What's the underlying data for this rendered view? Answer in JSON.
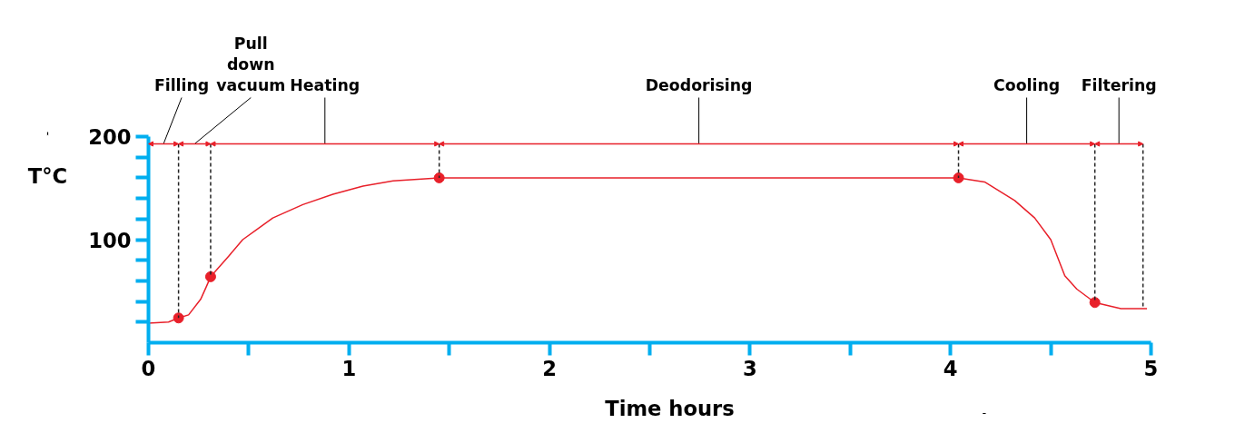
{
  "chart_data": {
    "type": "line",
    "xlabel": "Time hours",
    "ylabel": "T°C",
    "xlim": [
      0,
      5
    ],
    "ylim": [
      0,
      200
    ],
    "xticks": [
      0,
      {
        "value": 0.5,
        "label": null
      },
      1,
      {
        "value": 1.5,
        "label": null
      },
      2,
      {
        "value": 2.5,
        "label": null
      },
      3,
      {
        "value": 3.5,
        "label": null
      },
      4,
      {
        "value": 4.5,
        "label": null
      },
      5
    ],
    "yticks": [
      {
        "value": 20,
        "label": null
      },
      {
        "value": 40,
        "label": null
      },
      {
        "value": 60,
        "label": null
      },
      {
        "value": 80,
        "label": null
      },
      100,
      {
        "value": 120,
        "label": null
      },
      {
        "value": 140,
        "label": null
      },
      {
        "value": 160,
        "label": null
      },
      {
        "value": 180,
        "label": null
      },
      200
    ],
    "grid": false,
    "marker": "none",
    "line_style": "solid",
    "series": [
      {
        "color": "#e8202a",
        "x": [
          0,
          0.1,
          0.15,
          0.2,
          0.26,
          0.29,
          0.31,
          0.4,
          0.47,
          0.62,
          0.77,
          0.92,
          1.07,
          1.22,
          1.45,
          4.04,
          4.17,
          4.32,
          4.42,
          4.5,
          4.57,
          4.63,
          4.72,
          4.85,
          4.98
        ],
        "values": [
          19,
          20,
          24,
          27,
          42,
          55,
          64,
          84,
          100,
          121,
          134,
          144,
          152,
          157,
          160,
          160,
          156,
          138,
          121,
          100,
          65,
          52,
          39,
          33,
          33
        ]
      },
      {
        "type": "scatter",
        "color": "#e8202a",
        "marker": "circle",
        "x": [
          0.15,
          0.31,
          1.45,
          4.04,
          4.72
        ],
        "values": [
          24,
          64,
          160,
          160,
          39
        ]
      }
    ],
    "ref_lines": [
      {
        "axis": "x",
        "value": 0.15,
        "color": "#222222",
        "line_style": "dashed"
      },
      {
        "axis": "x",
        "value": 0.31,
        "color": "#222222",
        "line_style": "dashed"
      },
      {
        "axis": "x",
        "value": 1.45,
        "color": "#222222",
        "line_style": "dashed"
      },
      {
        "axis": "x",
        "value": 4.04,
        "color": "#222222",
        "line_style": "dashed"
      },
      {
        "axis": "x",
        "value": 4.72,
        "color": "#222222",
        "line_style": "dashed"
      },
      {
        "axis": "x",
        "value": 4.96,
        "color": "#222222",
        "line_style": "dashed"
      }
    ],
    "annotations": [
      "Filling",
      "Pull\ndown\nvacuum",
      "Heating",
      "Deodorising",
      "Cooling",
      "Filtering"
    ]
  }
}
